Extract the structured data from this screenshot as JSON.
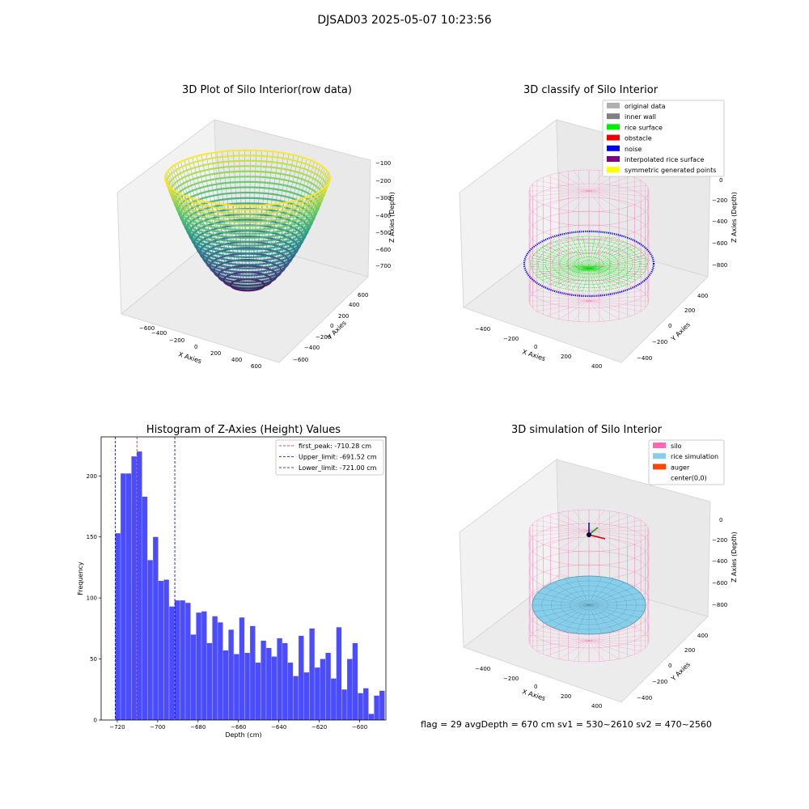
{
  "suptitle": "DJSAD03 2025-05-07 10:23:56",
  "footer": "flag = 29  avgDepth = 670 cm  sv1 = 530~2610  sv2 = 470~2560",
  "chart_data": [
    {
      "type": "scatter",
      "title": "3D Plot of Silo Interior(row data)",
      "xlabel": "X Axies",
      "ylabel": "Y Axies",
      "zlabel": "Z Axies (Depth)",
      "xticks": [
        "−600",
        "−400",
        "−200",
        "0",
        "200",
        "400",
        "600"
      ],
      "yticks": [
        "−600",
        "−400",
        "−200",
        "0",
        "200",
        "400",
        "600"
      ],
      "zticks": [
        "−100",
        "−200",
        "−300",
        "−400",
        "−500",
        "−600",
        "−700"
      ],
      "colormap": "viridis"
    },
    {
      "type": "scatter",
      "title": "3D classify of Silo Interior",
      "xlabel": "X Axies",
      "ylabel": "Y Axies",
      "zlabel": "Z Axies (Depth)",
      "xticks": [
        "−400",
        "−200",
        "0",
        "200",
        "400"
      ],
      "yticks": [
        "−400",
        "−200",
        "0",
        "200",
        "400"
      ],
      "zticks": [
        "0",
        "−200",
        "−400",
        "−600",
        "−800"
      ],
      "legend_position": "top-right",
      "legend": [
        {
          "label": "original data",
          "color": "#b0b0b0"
        },
        {
          "label": "inner wall",
          "color": "#808080"
        },
        {
          "label": "rice surface",
          "color": "#00ee00"
        },
        {
          "label": "obstacle",
          "color": "#ee0000"
        },
        {
          "label": "noise",
          "color": "#0000ee"
        },
        {
          "label": "interpolated rice surface",
          "color": "#800080"
        },
        {
          "label": "symmetric generated points",
          "color": "#ffff00"
        }
      ]
    },
    {
      "type": "bar",
      "title": "Histogram of Z-Axies (Height) Values",
      "xlabel": "Depth (cm)",
      "ylabel": "Frequency",
      "xlim": [
        -728,
        -587
      ],
      "ylim": [
        0,
        232
      ],
      "xticks": [
        "−720",
        "−700",
        "−680",
        "−660",
        "−640",
        "−620",
        "−600"
      ],
      "xtick_values": [
        -720,
        -700,
        -680,
        -660,
        -640,
        -620,
        -600
      ],
      "yticks": [
        "0",
        "50",
        "100",
        "150",
        "200"
      ],
      "ytick_values": [
        0,
        50,
        100,
        150,
        200
      ],
      "bin_width": 2.67,
      "bin_start": -721.0,
      "values": [
        153,
        202,
        202,
        216,
        220,
        183,
        131,
        150,
        114,
        115,
        93,
        98,
        98,
        96,
        70,
        88,
        89,
        63,
        85,
        80,
        57,
        74,
        54,
        84,
        55,
        77,
        47,
        65,
        59,
        52,
        67,
        63,
        47,
        36,
        69,
        39,
        75,
        43,
        50,
        55,
        34,
        76,
        25,
        50,
        63,
        22,
        26,
        5,
        20,
        24
      ],
      "bar_color": "#4c4cff",
      "legend_position": "top-right",
      "vlines": [
        {
          "label": "first_peak: -710.28 cm",
          "x": -710.28,
          "color": "#ff0000"
        },
        {
          "label": "Upper_limit: -691.52 cm",
          "x": -691.52,
          "color": "#0000aa"
        },
        {
          "label": "Lower_limit: -721.00 cm",
          "x": -721.0,
          "color": "#0000aa"
        }
      ]
    },
    {
      "type": "scatter",
      "title": "3D simulation of Silo Interior",
      "xlabel": "X Axies",
      "ylabel": "Y Axies",
      "zlabel": "Z Axies (Depth)",
      "xticks": [
        "−400",
        "−200",
        "0",
        "200",
        "400"
      ],
      "yticks": [
        "−400",
        "−200",
        "0",
        "200",
        "400"
      ],
      "zticks": [
        "0",
        "−200",
        "−400",
        "−600",
        "−800"
      ],
      "legend_position": "top-right",
      "legend": [
        {
          "label": "silo",
          "color": "#ff69b4"
        },
        {
          "label": "rice simulation",
          "color": "#87ceeb"
        },
        {
          "label": "auger",
          "color": "#ff4500"
        },
        {
          "label": "center(0,0)",
          "color": "#ffffff"
        }
      ]
    }
  ]
}
